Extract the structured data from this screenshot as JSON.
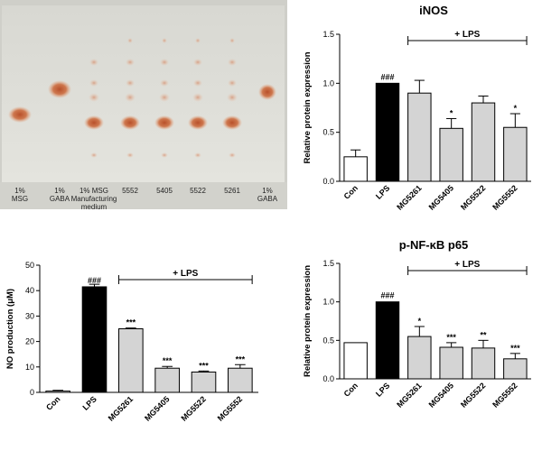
{
  "tlc": {
    "lane_labels": [
      [
        "1%",
        "MSG"
      ],
      [
        "1%",
        "GABA"
      ],
      [
        "1% MSG",
        "Manufacturing",
        "medium"
      ],
      [
        "5552"
      ],
      [
        "5405"
      ],
      [
        "5522"
      ],
      [
        "5261"
      ],
      [
        "1%",
        "GABA"
      ]
    ]
  },
  "chart_data": [
    {
      "id": "inos",
      "type": "bar",
      "title": "iNOS",
      "xlabel": "",
      "ylabel": "Relative protein expression",
      "ylim": [
        0,
        1.5
      ],
      "yticks": [
        "0.0",
        "0.5",
        "1.0",
        "1.5"
      ],
      "categories": [
        "Con",
        "LPS",
        "MG5261",
        "MG5405",
        "MG5522",
        "MG5552"
      ],
      "values": [
        0.25,
        1.0,
        0.9,
        0.54,
        0.8,
        0.55
      ],
      "errors": [
        0.07,
        0.0,
        0.13,
        0.1,
        0.07,
        0.14
      ],
      "significance": [
        "",
        "###",
        "",
        "*",
        "",
        "*"
      ],
      "fill_colors": [
        "#ffffff",
        "#000000",
        "#d4d4d4",
        "#d4d4d4",
        "#d4d4d4",
        "#d4d4d4"
      ],
      "bracket_label": "+ LPS",
      "grid": false
    },
    {
      "id": "no",
      "type": "bar",
      "title": "",
      "xlabel": "",
      "ylabel": "NO production (μM)",
      "ylim": [
        0,
        50
      ],
      "yticks": [
        "0",
        "10",
        "20",
        "30",
        "40",
        "50"
      ],
      "categories": [
        "Con",
        "LPS",
        "MG5261",
        "MG5405",
        "MG5522",
        "MG5552"
      ],
      "values": [
        0.5,
        41.5,
        25,
        9.5,
        8,
        9.5
      ],
      "errors": [
        0.3,
        1.0,
        0.3,
        0.7,
        0.4,
        1.4
      ],
      "significance": [
        "",
        "###",
        "***",
        "***",
        "***",
        "***"
      ],
      "fill_colors": [
        "#ffffff",
        "#000000",
        "#d4d4d4",
        "#d4d4d4",
        "#d4d4d4",
        "#d4d4d4"
      ],
      "bracket_label": "+ LPS",
      "grid": false
    },
    {
      "id": "nfkb",
      "type": "bar",
      "title": "p-NF-κB p65",
      "xlabel": "",
      "ylabel": "Relative protein expression",
      "ylim": [
        0,
        1.5
      ],
      "yticks": [
        "0.0",
        "0.5",
        "1.0",
        "1.5"
      ],
      "categories": [
        "Con",
        "LPS",
        "MG5261",
        "MG5405",
        "MG5522",
        "MG5552"
      ],
      "values": [
        0.47,
        1.0,
        0.55,
        0.41,
        0.4,
        0.26
      ],
      "errors": [
        0.0,
        0.0,
        0.13,
        0.06,
        0.1,
        0.07
      ],
      "significance": [
        "",
        "###",
        "*",
        "***",
        "**",
        "***"
      ],
      "fill_colors": [
        "#ffffff",
        "#000000",
        "#d4d4d4",
        "#d4d4d4",
        "#d4d4d4",
        "#d4d4d4"
      ],
      "bracket_label": "+ LPS",
      "grid": false
    }
  ]
}
